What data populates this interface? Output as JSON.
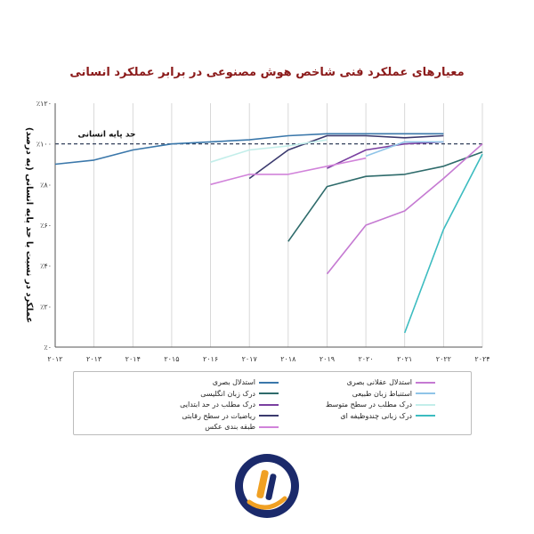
{
  "title": "معیارهای عملکرد فنی شاخص هوش مصنوعی در برابر عملکرد انسانی",
  "chart_data": {
    "type": "line",
    "title": "معیارهای عملکرد فنی شاخص هوش مصنوعی در برابر عملکرد انسانی",
    "ylabel": "عملکرد در نسبت با حد پایه انسانی (به درصد)",
    "xlabel": "",
    "x": [
      "۲۰۱۲",
      "۲۰۱۳",
      "۲۰۱۴",
      "۲۰۱۵",
      "۲۰۱۶",
      "۲۰۱۷",
      "۲۰۱۸",
      "۲۰۱۹",
      "۲۰۲۰",
      "۲۰۲۱",
      "۲۰۲۲",
      "۲۰۲۴"
    ],
    "y_ticks": [
      "٪۰",
      "٪۲۰",
      "٪۴۰",
      "٪۶۰",
      "٪۸۰",
      "٪۱۰۰",
      "٪۱۲۰"
    ],
    "ylim": [
      0,
      120
    ],
    "grid": "vertical",
    "baseline": {
      "value": 100,
      "label": "حد پایه انسانی"
    },
    "series": [
      {
        "name": "استدلال بصری",
        "color": "#3a77aa",
        "points": [
          [
            0,
            90
          ],
          [
            1,
            92
          ],
          [
            2,
            97
          ],
          [
            3,
            100
          ],
          [
            4,
            101
          ],
          [
            5,
            102
          ],
          [
            6,
            104
          ],
          [
            7,
            105
          ],
          [
            8,
            105
          ],
          [
            9,
            105
          ],
          [
            10,
            105
          ]
        ]
      },
      {
        "name": "درک زبان انگلیسی",
        "color": "#2e6b6b",
        "points": [
          [
            6,
            52
          ],
          [
            7,
            79
          ],
          [
            8,
            84
          ],
          [
            9,
            85
          ],
          [
            10,
            89
          ],
          [
            11,
            96
          ]
        ]
      },
      {
        "name": "درک مطلب در حد ابتدایی",
        "color": "#7a3fa0",
        "points": [
          [
            7,
            88
          ],
          [
            8,
            97
          ],
          [
            9,
            100
          ],
          [
            10,
            101
          ]
        ]
      },
      {
        "name": "ریاضیات در سطح رقابتی",
        "color": "#3b3a6e",
        "points": [
          [
            5,
            83
          ],
          [
            6,
            97
          ],
          [
            7,
            104
          ],
          [
            8,
            104
          ],
          [
            9,
            103
          ],
          [
            10,
            104
          ]
        ]
      },
      {
        "name": "طبقه بندی عکس",
        "color": "#d183da",
        "points": [
          [
            4,
            80
          ],
          [
            5,
            85
          ],
          [
            6,
            85
          ],
          [
            7,
            89
          ],
          [
            8,
            93
          ]
        ]
      },
      {
        "name": "استدلال عقلانی بصری",
        "color": "#c57ad2",
        "points": [
          [
            7,
            36
          ],
          [
            8,
            60
          ],
          [
            9,
            67
          ],
          [
            10,
            83
          ],
          [
            11,
            100
          ]
        ]
      },
      {
        "name": "استنباط زبان طبیعی",
        "color": "#8fc4e8",
        "points": [
          [
            8,
            94
          ],
          [
            9,
            101
          ],
          [
            10,
            101
          ]
        ]
      },
      {
        "name": "درک مطلب در سطح متوسط",
        "color": "#c3eeea",
        "points": [
          [
            4,
            91
          ],
          [
            5,
            97
          ],
          [
            6,
            99
          ],
          [
            7,
            102
          ]
        ]
      },
      {
        "name": "درک زبانی چندوظیفه ای",
        "color": "#3cbcc0",
        "points": [
          [
            9,
            7
          ],
          [
            10,
            58
          ],
          [
            11,
            95
          ]
        ]
      }
    ]
  }
}
